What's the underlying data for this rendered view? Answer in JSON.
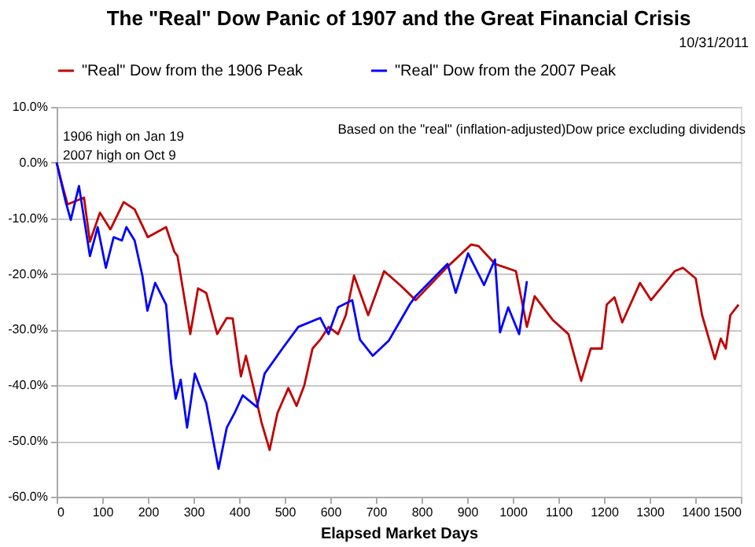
{
  "chart_data": {
    "type": "line",
    "title": "The \"Real\" Dow Panic of 1907 and the Great Financial Crisis",
    "xlabel": "Elapsed Market Days",
    "annotations": [
      "10/31/2011",
      "Based on the \"real\" (inflation-adjusted)Dow price excluding dividends",
      {
        "text": "1906  high on Jan 19\n2007  high on Oct 9",
        "x": 0,
        "y": 0
      }
    ],
    "series": [
      {
        "name": "\"Real\" Dow from the 1906 Peak",
        "color": "#c00000",
        "x": [
          0,
          14,
          24,
          60,
          73,
          95,
          118,
          147,
          171,
          200,
          240,
          258,
          265,
          293,
          310,
          328,
          352,
          373,
          386,
          404,
          415,
          432,
          449,
          467,
          484,
          508,
          526,
          543,
          561,
          578,
          596,
          617,
          634,
          652,
          683,
          718,
          753,
          787,
          857,
          909,
          925,
          961,
          1007,
          1031,
          1048,
          1087,
          1122,
          1150,
          1171,
          1195,
          1206,
          1223,
          1240,
          1279,
          1303,
          1355,
          1373,
          1401,
          1415,
          1443,
          1456,
          1467,
          1477,
          1495
        ],
        "values": [
          0,
          -4.5,
          -7.5,
          -6.3,
          -14.2,
          -9,
          -12,
          -7.1,
          -8.4,
          -13.4,
          -11.6,
          -16,
          -16.8,
          -30.8,
          -22.6,
          -23.4,
          -30.8,
          -27.9,
          -28,
          -38.4,
          -34.7,
          -40.5,
          -46.6,
          -51.6,
          -45,
          -40.5,
          -43.7,
          -40,
          -33.4,
          -31.8,
          -29.5,
          -30.8,
          -27.4,
          -20.3,
          -27.4,
          -19.5,
          -22,
          -24.7,
          -18.7,
          -14.7,
          -15,
          -18.2,
          -19.5,
          -29.5,
          -24,
          -28.2,
          -30.8,
          -39.2,
          -33.4,
          -33.4,
          -25.5,
          -24.2,
          -28.7,
          -21.6,
          -24.7,
          -19.5,
          -18.9,
          -20.8,
          -27.4,
          -35.3,
          -31.6,
          -33.4,
          -27.4,
          -25.5
        ]
      },
      {
        "name": "\"Real\" Dow from the 2007 Peak",
        "color": "#0000ff",
        "x": [
          0,
          20,
          31,
          49,
          73,
          90,
          108,
          125,
          143,
          153,
          171,
          188,
          199,
          216,
          240,
          251,
          261,
          272,
          286,
          303,
          328,
          355,
          373,
          390,
          408,
          439,
          456,
          495,
          530,
          578,
          596,
          617,
          648,
          665,
          693,
          728,
          774,
          787,
          857,
          875,
          902,
          937,
          961,
          972,
          990,
          1014,
          1031
        ],
        "values": [
          0,
          -7.1,
          -10.3,
          -4.2,
          -16.8,
          -11.6,
          -18.9,
          -13.4,
          -14,
          -11.6,
          -14,
          -20.3,
          -26.6,
          -21.6,
          -25.5,
          -36,
          -42.4,
          -39,
          -47.6,
          -37.9,
          -43.2,
          -55,
          -47.6,
          -45,
          -41.8,
          -43.9,
          -37.9,
          -33.4,
          -29.5,
          -27.9,
          -30.8,
          -26,
          -24.7,
          -31.8,
          -34.7,
          -32,
          -25.5,
          -24,
          -18.2,
          -23.4,
          -16.3,
          -22,
          -17.4,
          -30.5,
          -26,
          -30.8,
          -21.3
        ]
      }
    ],
    "xlim": [
      0,
      1500
    ],
    "xticks": [
      0,
      100,
      200,
      300,
      400,
      500,
      600,
      700,
      800,
      900,
      1000,
      1100,
      1200,
      1300,
      1400,
      1500
    ],
    "ylim": [
      -60,
      10
    ],
    "yticks": [
      {
        "value": -60,
        "label": "-60.0%"
      },
      {
        "value": -50,
        "label": "-50.0%"
      },
      {
        "value": -40,
        "label": "-40.0%"
      },
      {
        "value": -30,
        "label": "-30.0%"
      },
      {
        "value": -20,
        "label": "-20.0%"
      },
      {
        "value": -10,
        "label": "-10.0%"
      },
      {
        "value": 0,
        "label": "0.0%"
      },
      {
        "value": 10,
        "label": "10.0%"
      }
    ],
    "grid": "y",
    "legend": "top",
    "marker": "none",
    "line_style": "solid"
  }
}
